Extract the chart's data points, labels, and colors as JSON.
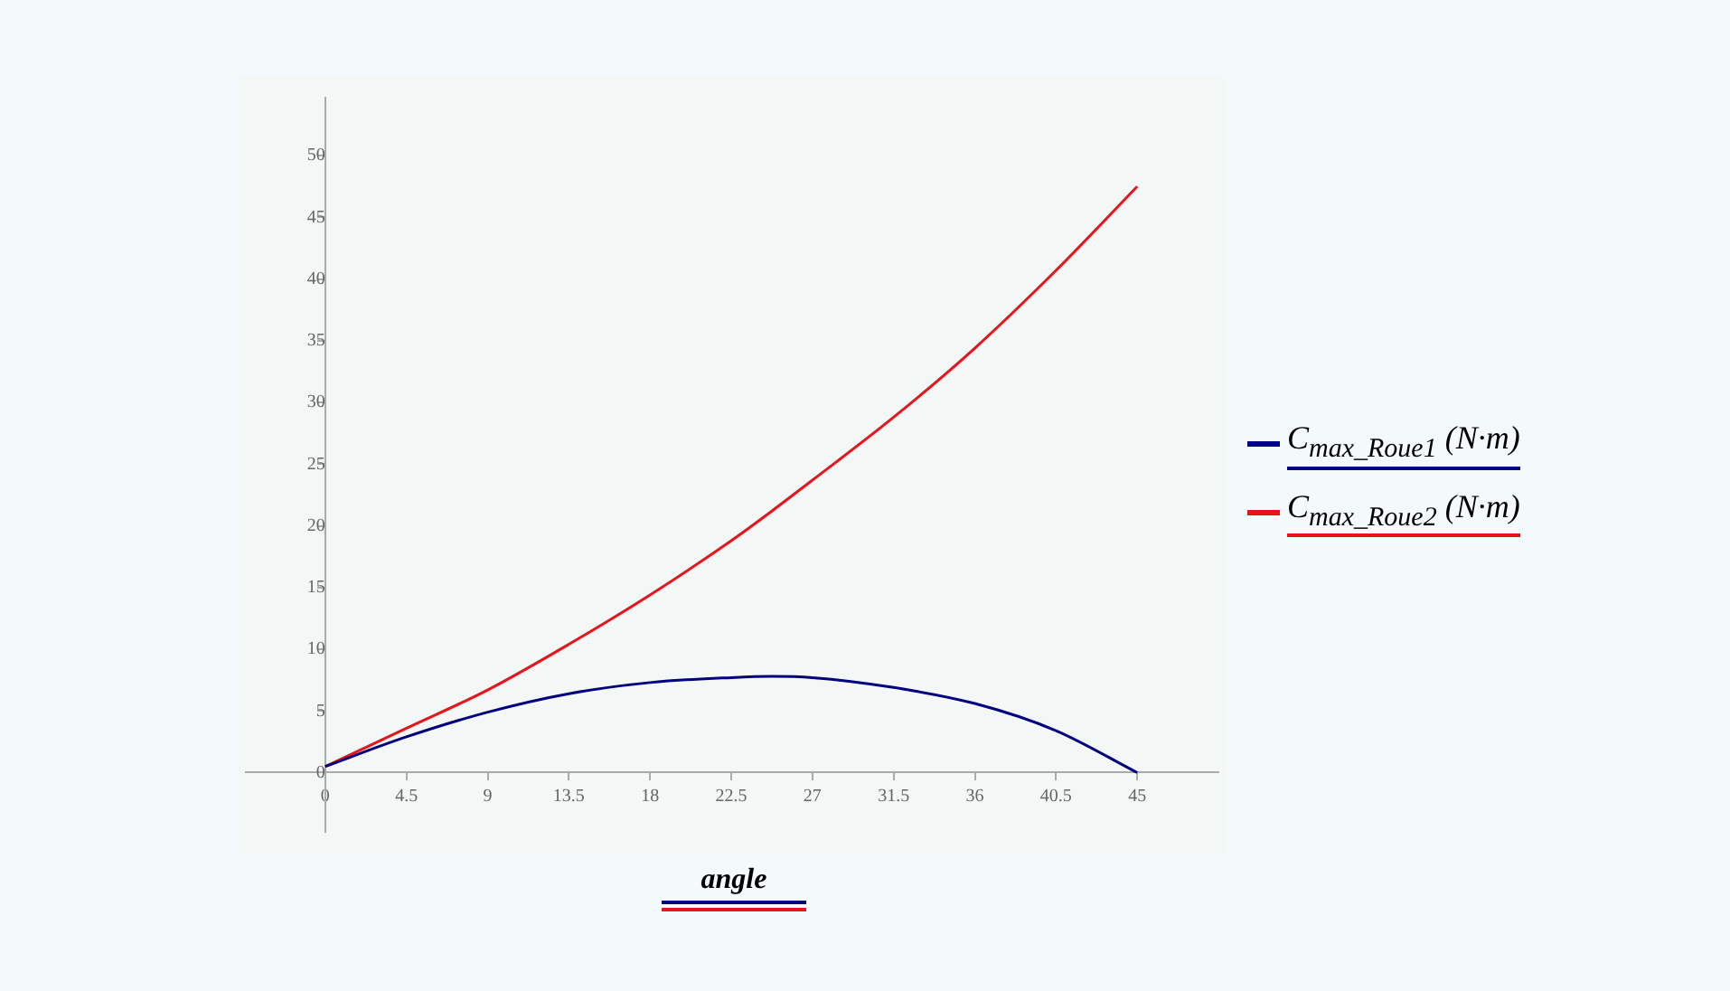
{
  "chart_data": {
    "type": "line",
    "xlabel": "angle",
    "x": [
      0,
      4.5,
      9,
      13.5,
      18,
      22.5,
      24.75,
      27,
      31.5,
      36,
      40.5,
      45
    ],
    "series": [
      {
        "name": "C$_{max_Roue1}$ (N·m)",
        "color": "#000080",
        "values": [
          0.5,
          2.9,
          4.9,
          6.4,
          7.3,
          7.7,
          7.8,
          7.7,
          6.9,
          5.6,
          3.4,
          0
        ]
      },
      {
        "name": "C$_{max_Roue2}$ (N·m)",
        "color": "#e8141c",
        "values": [
          0.5,
          3.6,
          6.7,
          10.4,
          14.4,
          18.8,
          21.2,
          23.7,
          28.8,
          34.4,
          40.7,
          47.5
        ]
      }
    ],
    "xlim": [
      -4.4,
      49.5
    ],
    "ylim": [
      -4.8,
      54.7
    ],
    "xticks": [
      0,
      4.5,
      9,
      13.5,
      18,
      22.5,
      27,
      31.5,
      36,
      40.5,
      45
    ],
    "yticks": [
      0,
      5,
      10,
      15,
      20,
      25,
      30,
      35,
      40,
      45,
      50
    ],
    "legend": "right",
    "marker": "none",
    "line_style": "solid"
  }
}
